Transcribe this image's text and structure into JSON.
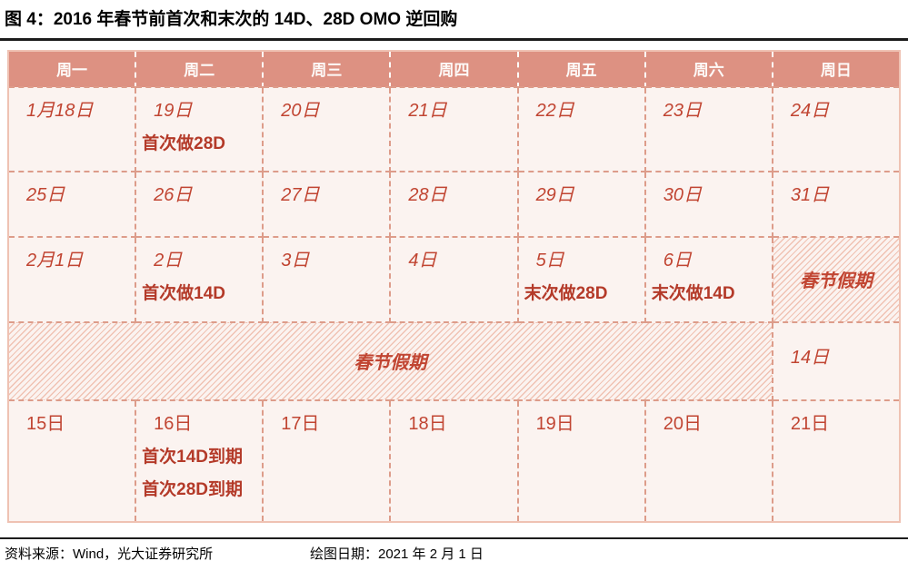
{
  "title": "图 4：2016 年春节前首次和末次的 14D、28D OMO 逆回购",
  "colors": {
    "header_bg": "#dd9182",
    "cell_bg": "#fbf3f0",
    "border_dashed": "#dd9c8a",
    "date_text": "#c14532",
    "note_text": "#b43a29",
    "hatch_stripe": "#f0c2b3",
    "rule_dark": "#1c1c1c"
  },
  "calendar": {
    "weekdays": [
      "周一",
      "周二",
      "周三",
      "周四",
      "周五",
      "周六",
      "周日"
    ],
    "holiday_label": "春节假期",
    "rows": [
      {
        "cells": [
          {
            "date": "1月18日"
          },
          {
            "date": "19日",
            "notes": [
              "首次做28D"
            ]
          },
          {
            "date": "20日"
          },
          {
            "date": "21日"
          },
          {
            "date": "22日"
          },
          {
            "date": "23日"
          },
          {
            "date": "24日"
          }
        ]
      },
      {
        "cells": [
          {
            "date": "25日"
          },
          {
            "date": "26日"
          },
          {
            "date": "27日"
          },
          {
            "date": "28日"
          },
          {
            "date": "29日"
          },
          {
            "date": "30日"
          },
          {
            "date": "31日"
          }
        ]
      },
      {
        "cells": [
          {
            "date": "2月1日"
          },
          {
            "date": "2日",
            "notes": [
              "首次做14D"
            ]
          },
          {
            "date": "3日"
          },
          {
            "date": "4日"
          },
          {
            "date": "5日",
            "notes": [
              "末次做28D"
            ]
          },
          {
            "date": "6日",
            "notes": [
              "末次做14D"
            ]
          },
          {
            "holiday": "春节假期"
          }
        ]
      },
      {
        "cells": [
          {
            "holiday": "春节假期",
            "colspan": 6
          },
          {
            "date": "14日"
          }
        ]
      },
      {
        "cells": [
          {
            "date": "15日"
          },
          {
            "date": "16日",
            "notes": [
              "首次14D到期",
              "首次28D到期"
            ]
          },
          {
            "date": "17日"
          },
          {
            "date": "18日"
          },
          {
            "date": "19日"
          },
          {
            "date": "20日"
          },
          {
            "date": "21日"
          }
        ]
      }
    ]
  },
  "footer": {
    "source": "资料来源：Wind，光大证券研究所",
    "draw_date": "绘图日期：2021 年 2 月 1 日"
  }
}
